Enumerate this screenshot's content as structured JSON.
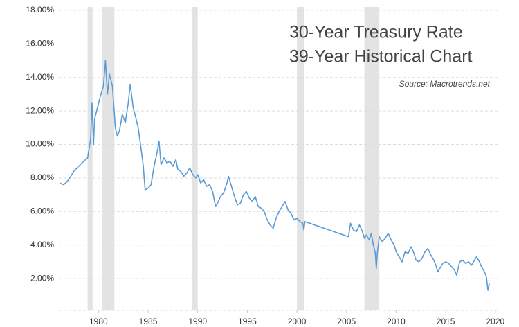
{
  "chart_data": {
    "type": "line",
    "title": "30-Year Treasury Rate",
    "subtitle": "39-Year Historical Chart",
    "source": "Source: Macrotrends.net",
    "xlim": [
      1976,
      2020.5
    ],
    "xticks": [
      1980,
      1985,
      1990,
      1995,
      2000,
      2005,
      2010,
      2015,
      2020
    ],
    "ylim": [
      0,
      18
    ],
    "yticks": [
      {
        "value": 2,
        "label": "2.00%"
      },
      {
        "value": 4,
        "label": "4.00%"
      },
      {
        "value": 6,
        "label": "6.00%"
      },
      {
        "value": 8,
        "label": "8.00%"
      },
      {
        "value": 10,
        "label": "10.00%"
      },
      {
        "value": 12,
        "label": "12.00%"
      },
      {
        "value": 14,
        "label": "14.00%"
      },
      {
        "value": 16,
        "label": "16.00%"
      },
      {
        "value": 18,
        "label": "18.00%"
      }
    ],
    "grid": true,
    "bands": [
      [
        1978.9,
        1979.4
      ],
      [
        1980.4,
        1981.6
      ],
      [
        1989.4,
        1990.0
      ],
      [
        2000.0,
        2000.7
      ],
      [
        2006.8,
        2008.3
      ]
    ],
    "band_color": "#e3e3e3",
    "series": [
      {
        "color": "#5b9bd5",
        "x": [
          1976.1,
          1976.5,
          1977.0,
          1977.5,
          1978.0,
          1978.5,
          1978.9,
          1979.2,
          1979.35,
          1979.5,
          1979.6,
          1979.9,
          1980.2,
          1980.5,
          1980.7,
          1980.9,
          1981.1,
          1981.4,
          1981.7,
          1981.9,
          1982.1,
          1982.4,
          1982.7,
          1983.0,
          1983.2,
          1983.5,
          1983.8,
          1984.0,
          1984.3,
          1984.5,
          1984.7,
          1985.0,
          1985.3,
          1985.6,
          1985.9,
          1986.1,
          1986.3,
          1986.6,
          1986.9,
          1987.2,
          1987.5,
          1987.8,
          1988.0,
          1988.3,
          1988.6,
          1988.9,
          1989.2,
          1989.5,
          1989.8,
          1990.0,
          1990.3,
          1990.6,
          1990.9,
          1991.2,
          1991.5,
          1991.8,
          1992.0,
          1992.3,
          1992.6,
          1992.9,
          1993.1,
          1993.4,
          1993.7,
          1994.0,
          1994.3,
          1994.6,
          1994.9,
          1995.2,
          1995.5,
          1995.8,
          1996.1,
          1996.4,
          1996.7,
          1997.0,
          1997.3,
          1997.6,
          1997.9,
          1998.2,
          1998.5,
          1998.8,
          1999.1,
          1999.4,
          1999.7,
          2000.0,
          2000.3,
          2000.6,
          2000.7,
          2000.8,
          2005.2,
          2005.4,
          2005.7,
          2006.0,
          2006.3,
          2006.6,
          2006.8,
          2007.0,
          2007.3,
          2007.5,
          2007.7,
          2007.9,
          2008.0,
          2008.1,
          2008.3,
          2008.6,
          2008.9,
          2009.2,
          2009.5,
          2009.8,
          2010.0,
          2010.3,
          2010.6,
          2010.9,
          2011.2,
          2011.5,
          2011.8,
          2012.0,
          2012.3,
          2012.6,
          2012.9,
          2013.2,
          2013.5,
          2013.8,
          2014.0,
          2014.2,
          2014.4,
          2014.7,
          2015.0,
          2015.3,
          2015.6,
          2015.9,
          2016.1,
          2016.4,
          2016.7,
          2017.0,
          2017.3,
          2017.6,
          2017.9,
          2018.1,
          2018.4,
          2018.6,
          2018.9,
          2019.1,
          2019.25,
          2019.4
        ],
        "values": [
          7.7,
          7.6,
          7.9,
          8.4,
          8.7,
          9.0,
          9.2,
          10.3,
          12.5,
          10.0,
          11.5,
          12.2,
          12.9,
          13.5,
          15.0,
          13.0,
          14.2,
          13.5,
          11.0,
          10.5,
          10.8,
          11.8,
          11.3,
          12.5,
          13.6,
          12.2,
          11.5,
          11.0,
          9.7,
          8.8,
          7.3,
          7.4,
          7.6,
          8.7,
          9.5,
          10.2,
          8.8,
          9.2,
          8.9,
          9.0,
          8.7,
          9.1,
          8.5,
          8.4,
          8.1,
          8.3,
          8.6,
          8.2,
          8.0,
          8.2,
          7.7,
          7.9,
          7.5,
          7.6,
          7.2,
          6.3,
          6.5,
          6.9,
          7.1,
          7.6,
          8.1,
          7.5,
          6.9,
          6.4,
          6.5,
          7.0,
          7.2,
          6.8,
          6.6,
          6.9,
          6.3,
          6.2,
          6.0,
          5.5,
          5.2,
          5.0,
          5.6,
          6.0,
          6.3,
          6.6,
          6.1,
          5.9,
          5.5,
          5.6,
          5.4,
          5.3,
          4.9,
          5.4,
          4.5,
          5.3,
          4.9,
          4.8,
          5.2,
          4.8,
          4.4,
          4.6,
          4.3,
          4.7,
          4.0,
          3.5,
          2.6,
          3.5,
          4.5,
          4.2,
          4.4,
          4.7,
          4.3,
          4.0,
          3.6,
          3.3,
          3.0,
          3.6,
          3.5,
          3.9,
          3.5,
          3.1,
          3.0,
          3.2,
          3.6,
          3.8,
          3.4,
          3.1,
          2.8,
          2.4,
          2.6,
          2.9,
          3.0,
          2.9,
          2.7,
          2.5,
          2.2,
          3.0,
          3.1,
          2.9,
          3.0,
          2.8,
          3.1,
          3.3,
          3.0,
          2.7,
          2.4,
          2.1,
          1.3,
          1.7
        ]
      }
    ]
  }
}
